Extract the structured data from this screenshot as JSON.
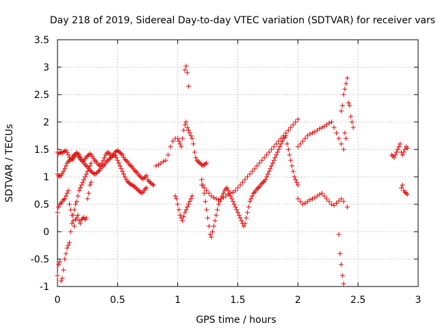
{
  "chart_data": {
    "type": "scatter",
    "title": "Day 218 of 2019, Sidereal Day-to-day VTEC variation (SDTVAR) for receiver vars",
    "xlabel": "GPS time / hours",
    "ylabel": "SDTVAR / TECUs",
    "xlim": [
      0,
      3
    ],
    "ylim": [
      -1,
      3.5
    ],
    "xticks": [
      0,
      0.5,
      1,
      1.5,
      2,
      2.5,
      3
    ],
    "xtick_labels": [
      "0",
      "0.5",
      "1",
      "1.5",
      "2",
      "2.5",
      "3"
    ],
    "yticks": [
      -1,
      -0.5,
      0,
      0.5,
      1,
      1.5,
      2,
      2.5,
      3,
      3.5
    ],
    "ytick_labels": [
      "-1",
      "-0.5",
      "0",
      "0.5",
      "1",
      "1.5",
      "2",
      "2.5",
      "3",
      "3.5"
    ],
    "grid": true,
    "marker": "+",
    "marker_color": "#e00000",
    "series": [
      {
        "name": "SDTVAR",
        "x": [
          0.0,
          0.01,
          0.02,
          0.03,
          0.04,
          0.05,
          0.06,
          0.07,
          0.08,
          0.09,
          0.1,
          0.11,
          0.12,
          0.13,
          0.14,
          0.15,
          0.16,
          0.17,
          0.18,
          0.19,
          0.2,
          0.21,
          0.22,
          0.23,
          0.24,
          0.25,
          0.26,
          0.27,
          0.28,
          0.29,
          0.3,
          0.31,
          0.32,
          0.33,
          0.34,
          0.35,
          0.36,
          0.37,
          0.38,
          0.39,
          0.4,
          0.41,
          0.42,
          0.43,
          0.44,
          0.45,
          0.46,
          0.47,
          0.48,
          0.49,
          0.5,
          0.51,
          0.52,
          0.53,
          0.54,
          0.55,
          0.56,
          0.57,
          0.58,
          0.59,
          0.6,
          0.61,
          0.62,
          0.63,
          0.64,
          0.65,
          0.66,
          0.67,
          0.68,
          0.69,
          0.7,
          0.71,
          0.72,
          0.73,
          0.74,
          0.75,
          0.76,
          0.77,
          0.78,
          0.79,
          0.8,
          0.0,
          0.01,
          0.02,
          0.03,
          0.04,
          0.05,
          0.06,
          0.07,
          0.08,
          0.09,
          0.1,
          0.11,
          0.12,
          0.13,
          0.14,
          0.15,
          0.16,
          0.17,
          0.18,
          0.19,
          0.2,
          0.21,
          0.22,
          0.23,
          0.24,
          0.25,
          0.26,
          0.27,
          0.28,
          0.29,
          0.3,
          0.31,
          0.32,
          0.33,
          0.34,
          0.35,
          0.36,
          0.37,
          0.38,
          0.39,
          0.4,
          0.41,
          0.42,
          0.43,
          0.44,
          0.45,
          0.46,
          0.47,
          0.48,
          0.49,
          0.5,
          0.51,
          0.52,
          0.53,
          0.54,
          0.55,
          0.56,
          0.57,
          0.58,
          0.59,
          0.6,
          0.61,
          0.62,
          0.63,
          0.64,
          0.65,
          0.66,
          0.67,
          0.68,
          0.69,
          0.7,
          0.71,
          0.72,
          0.73,
          0.74,
          0.0,
          0.01,
          0.02,
          0.03,
          0.04,
          0.05,
          0.06,
          0.07,
          0.08,
          0.09,
          0.1,
          0.11,
          0.12,
          0.13,
          0.14,
          0.15,
          0.16,
          0.17,
          0.18,
          0.19,
          0.2,
          0.21,
          0.22,
          0.23,
          0.24,
          0.25,
          0.26,
          0.27,
          0.28,
          0.0,
          0.01,
          0.02,
          0.03,
          0.04,
          0.05,
          0.06,
          0.07,
          0.08,
          0.09,
          0.1,
          0.11,
          0.12,
          0.13,
          0.14,
          0.15,
          0.16,
          0.17,
          0.18,
          0.19,
          0.2,
          0.21,
          0.22,
          0.23,
          0.24,
          0.25,
          0.26,
          0.27,
          0.28,
          0.82,
          0.84,
          0.86,
          0.88,
          0.9,
          0.92,
          0.94,
          0.96,
          0.98,
          1.0,
          1.01,
          1.02,
          1.03,
          1.04,
          1.05,
          1.06,
          1.07,
          1.08,
          1.09,
          1.1,
          1.11,
          1.12,
          1.13,
          1.14,
          1.15,
          1.16,
          1.17,
          1.18,
          1.19,
          1.2,
          1.21,
          1.22,
          1.23,
          1.24,
          0.98,
          0.99,
          1.0,
          1.01,
          1.02,
          1.03,
          1.04,
          1.05,
          1.06,
          1.07,
          1.08,
          1.09,
          1.1,
          1.11,
          1.12,
          1.06,
          1.07,
          1.08,
          1.09,
          1.2,
          1.21,
          1.22,
          1.23,
          1.24,
          1.25,
          1.26,
          1.27,
          1.28,
          1.29,
          1.3,
          1.31,
          1.32,
          1.33,
          1.34,
          1.35,
          1.36,
          1.37,
          1.38,
          1.39,
          1.4,
          1.41,
          1.42,
          1.43,
          1.44,
          1.45,
          1.46,
          1.47,
          1.48,
          1.49,
          1.5,
          1.51,
          1.52,
          1.53,
          1.54,
          1.55,
          1.56,
          1.57,
          1.58,
          1.59,
          1.6,
          1.61,
          1.62,
          1.63,
          1.64,
          1.65,
          1.66,
          1.67,
          1.68,
          1.69,
          1.7,
          1.71,
          1.72,
          1.73,
          1.74,
          1.75,
          1.76,
          1.77,
          1.78,
          1.79,
          1.8,
          1.81,
          1.82,
          1.83,
          1.84,
          1.85,
          1.86,
          1.87,
          1.88,
          1.89,
          1.9,
          1.91,
          1.92,
          1.93,
          1.94,
          1.95,
          1.96,
          1.97,
          1.98,
          1.99,
          2.0,
          1.2,
          1.22,
          1.24,
          1.26,
          1.28,
          1.3,
          1.32,
          1.34,
          1.36,
          1.38,
          1.4,
          1.42,
          1.44,
          1.46,
          1.48,
          1.5,
          1.52,
          1.54,
          1.56,
          1.58,
          1.6,
          1.62,
          1.64,
          1.66,
          1.68,
          1.7,
          1.72,
          1.74,
          1.76,
          1.78,
          1.8,
          1.82,
          1.84,
          1.86,
          1.88,
          1.9,
          1.92,
          1.94,
          1.96,
          1.98,
          2.0,
          2.0,
          2.02,
          2.04,
          2.06,
          2.08,
          2.1,
          2.12,
          2.14,
          2.16,
          2.18,
          2.2,
          2.22,
          2.24,
          2.26,
          2.28,
          2.3,
          2.32,
          2.34,
          2.36,
          2.38,
          2.0,
          2.02,
          2.04,
          2.06,
          2.08,
          2.1,
          2.12,
          2.14,
          2.16,
          2.18,
          2.2,
          2.22,
          2.24,
          2.26,
          2.28,
          2.3,
          2.32,
          2.34,
          2.36,
          2.38,
          2.36,
          2.37,
          2.38,
          2.39,
          2.4,
          2.41,
          2.42,
          2.43,
          2.44,
          2.45,
          2.46,
          2.34,
          2.35,
          2.36,
          2.37,
          2.38,
          2.39,
          2.4,
          2.41,
          2.78,
          2.79,
          2.8,
          2.81,
          2.82,
          2.83,
          2.84,
          2.85,
          2.86,
          2.87,
          2.88,
          2.89,
          2.9,
          2.91,
          2.86,
          2.87,
          2.88,
          2.89,
          2.9,
          2.91
        ],
        "y": [
          1.45,
          1.42,
          1.44,
          1.45,
          1.43,
          1.46,
          1.47,
          1.48,
          1.44,
          1.4,
          1.35,
          1.32,
          1.3,
          1.33,
          1.36,
          1.4,
          1.42,
          1.38,
          1.35,
          1.32,
          1.3,
          1.28,
          1.3,
          1.33,
          1.36,
          1.38,
          1.4,
          1.42,
          1.4,
          1.37,
          1.33,
          1.3,
          1.28,
          1.25,
          1.22,
          1.2,
          1.22,
          1.25,
          1.3,
          1.35,
          1.4,
          1.43,
          1.45,
          1.43,
          1.4,
          1.38,
          1.4,
          1.42,
          1.45,
          1.47,
          1.48,
          1.46,
          1.44,
          1.42,
          1.4,
          1.36,
          1.32,
          1.3,
          1.28,
          1.25,
          1.22,
          1.2,
          1.18,
          1.15,
          1.12,
          1.1,
          1.08,
          1.05,
          1.02,
          1.0,
          0.98,
          0.96,
          0.98,
          1.0,
          1.02,
          0.95,
          0.92,
          0.9,
          0.88,
          0.86,
          0.85,
          1.05,
          1.02,
          1.0,
          1.03,
          1.06,
          1.1,
          1.15,
          1.2,
          1.25,
          1.28,
          1.3,
          1.32,
          1.35,
          1.38,
          1.4,
          1.42,
          1.44,
          1.42,
          1.4,
          1.36,
          1.32,
          1.28,
          1.25,
          1.22,
          1.2,
          1.18,
          1.15,
          1.12,
          1.1,
          1.08,
          1.06,
          1.05,
          1.06,
          1.08,
          1.1,
          1.12,
          1.15,
          1.18,
          1.2,
          1.22,
          1.25,
          1.28,
          1.3,
          1.32,
          1.34,
          1.36,
          1.38,
          1.4,
          1.38,
          1.35,
          1.3,
          1.25,
          1.2,
          1.15,
          1.1,
          1.05,
          1.0,
          0.96,
          0.92,
          0.9,
          0.88,
          0.86,
          0.85,
          0.84,
          0.82,
          0.8,
          0.78,
          0.76,
          0.74,
          0.72,
          0.7,
          0.72,
          0.75,
          0.78,
          0.8,
          0.35,
          0.45,
          0.5,
          0.52,
          0.55,
          0.58,
          0.6,
          0.65,
          0.7,
          0.75,
          0.5,
          0.4,
          0.3,
          0.2,
          0.1,
          0.22,
          0.25,
          0.3,
          0.2,
          0.15,
          0.22,
          0.24,
          0.26,
          0.22,
          0.25,
          0.6,
          0.7,
          0.85,
          0.9,
          -0.8,
          -0.6,
          -0.55,
          -0.9,
          -0.85,
          -0.7,
          -0.5,
          -0.4,
          -0.3,
          -0.25,
          -0.2,
          0.0,
          0.15,
          0.3,
          0.4,
          0.5,
          0.55,
          0.65,
          0.75,
          0.8,
          0.85,
          0.9,
          0.95,
          1.0,
          1.05,
          1.1,
          1.15,
          1.2,
          1.25,
          1.2,
          1.22,
          1.25,
          1.28,
          1.3,
          1.4,
          1.55,
          1.65,
          1.7,
          1.7,
          1.65,
          1.6,
          1.55,
          1.7,
          1.85,
          1.95,
          2.0,
          1.9,
          1.85,
          1.8,
          1.75,
          1.7,
          1.6,
          1.45,
          1.35,
          1.3,
          1.28,
          1.26,
          1.24,
          1.22,
          1.2,
          1.22,
          1.24,
          1.25,
          0.65,
          0.6,
          0.5,
          0.4,
          0.3,
          0.25,
          0.2,
          0.28,
          0.35,
          0.4,
          0.45,
          0.5,
          0.55,
          0.6,
          0.65,
          2.95,
          3.02,
          2.9,
          2.65,
          0.95,
          0.85,
          0.7,
          0.55,
          0.4,
          0.25,
          0.1,
          -0.05,
          -0.1,
          0.0,
          0.1,
          0.2,
          0.3,
          0.4,
          0.5,
          0.55,
          0.6,
          0.65,
          0.7,
          0.75,
          0.78,
          0.8,
          0.75,
          0.7,
          0.65,
          0.6,
          0.55,
          0.5,
          0.45,
          0.4,
          0.35,
          0.3,
          0.25,
          0.2,
          0.15,
          0.1,
          0.15,
          0.25,
          0.35,
          0.45,
          0.55,
          0.6,
          0.65,
          0.7,
          0.72,
          0.75,
          0.78,
          0.8,
          0.82,
          0.85,
          0.88,
          0.9,
          0.92,
          0.95,
          1.0,
          1.05,
          1.1,
          1.15,
          1.2,
          1.25,
          1.3,
          1.35,
          1.4,
          1.45,
          1.5,
          1.55,
          1.6,
          1.65,
          1.7,
          1.72,
          1.75,
          1.6,
          1.5,
          1.4,
          1.3,
          1.2,
          1.1,
          1.0,
          0.95,
          0.9,
          0.85,
          0.85,
          0.8,
          0.75,
          0.7,
          0.65,
          0.62,
          0.6,
          0.58,
          0.6,
          0.62,
          0.65,
          0.68,
          0.7,
          0.72,
          0.75,
          0.8,
          0.85,
          0.9,
          0.95,
          1.0,
          1.05,
          1.1,
          1.15,
          1.2,
          1.25,
          1.3,
          1.35,
          1.4,
          1.45,
          1.5,
          1.55,
          1.6,
          1.65,
          1.7,
          1.75,
          1.8,
          1.85,
          1.9,
          1.95,
          2.0,
          2.05,
          1.55,
          1.6,
          1.65,
          1.7,
          1.75,
          1.78,
          1.8,
          1.82,
          1.85,
          1.88,
          1.9,
          1.92,
          1.95,
          1.98,
          2.0,
          1.9,
          1.8,
          1.7,
          1.6,
          1.5,
          0.6,
          0.55,
          0.5,
          0.52,
          0.55,
          0.58,
          0.6,
          0.62,
          0.65,
          0.68,
          0.7,
          0.65,
          0.6,
          0.55,
          0.5,
          0.48,
          0.52,
          0.56,
          0.6,
          0.55,
          2.2,
          2.3,
          2.5,
          2.6,
          2.7,
          2.8,
          2.35,
          2.3,
          2.1,
          2.0,
          1.9,
          -0.05,
          -0.4,
          -0.6,
          -0.8,
          -0.95,
          1.8,
          1.7,
          0.45,
          1.4,
          1.38,
          1.35,
          1.4,
          1.45,
          1.5,
          1.55,
          1.6,
          1.45,
          1.4,
          1.45,
          1.5,
          1.55,
          1.52,
          0.8,
          0.85,
          0.75,
          0.72,
          0.7,
          0.68
        ]
      }
    ]
  }
}
